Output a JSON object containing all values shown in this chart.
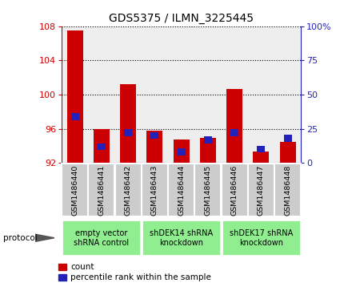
{
  "title": "GDS5375 / ILMN_3225445",
  "samples": [
    "GSM1486440",
    "GSM1486441",
    "GSM1486442",
    "GSM1486443",
    "GSM1486444",
    "GSM1486445",
    "GSM1486446",
    "GSM1486447",
    "GSM1486448"
  ],
  "count_values": [
    107.5,
    96.0,
    101.2,
    95.8,
    94.7,
    94.9,
    100.7,
    93.3,
    94.5
  ],
  "percentile_values": [
    34,
    12,
    22,
    20,
    8,
    17,
    22,
    10,
    18
  ],
  "ylim_left": [
    92,
    108
  ],
  "ylim_right": [
    0,
    100
  ],
  "yticks_left": [
    92,
    96,
    100,
    104,
    108
  ],
  "yticks_right": [
    0,
    25,
    50,
    75,
    100
  ],
  "bar_color": "#cc0000",
  "percentile_color": "#2222bb",
  "title_color": "#000000",
  "left_axis_color": "#cc0000",
  "right_axis_color": "#2222bb",
  "plot_facecolor": "#eeeeee",
  "box_facecolor": "#cccccc",
  "group_color": "#90ee90",
  "groups": [
    {
      "label": "empty vector\nshRNA control",
      "start": 0,
      "end": 3
    },
    {
      "label": "shDEK14 shRNA\nknockdown",
      "start": 3,
      "end": 6
    },
    {
      "label": "shDEK17 shRNA\nknockdown",
      "start": 6,
      "end": 9
    }
  ],
  "protocol_label": "protocol",
  "legend_count": "count",
  "legend_pct": "percentile rank within the sample",
  "bar_width": 0.6,
  "baseline": 92
}
